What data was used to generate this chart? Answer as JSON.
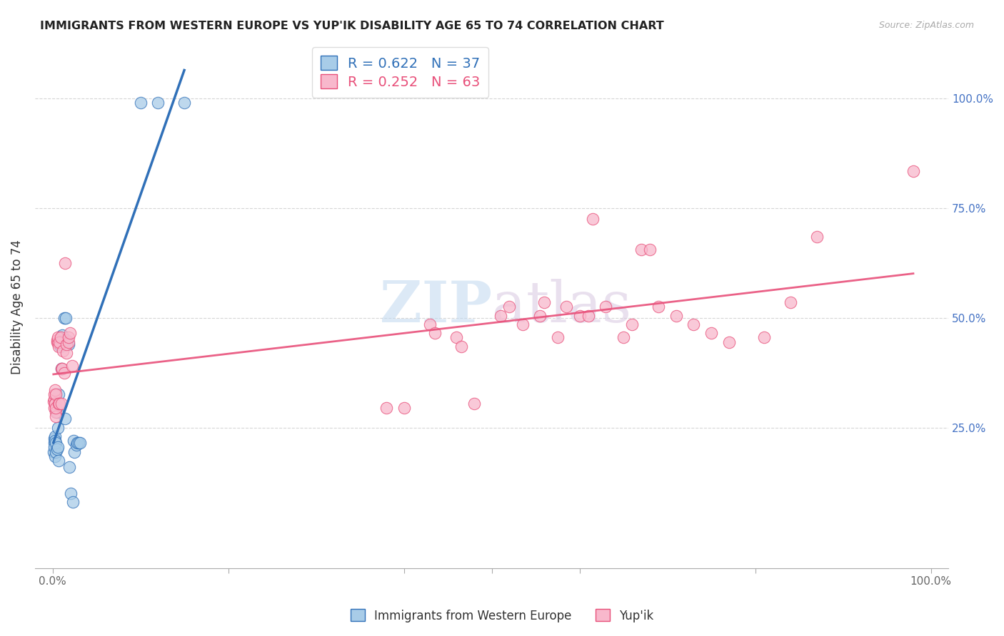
{
  "title": "IMMIGRANTS FROM WESTERN EUROPE VS YUP'IK DISABILITY AGE 65 TO 74 CORRELATION CHART",
  "source": "Source: ZipAtlas.com",
  "ylabel": "Disability Age 65 to 74",
  "legend_label_blue": "Immigrants from Western Europe",
  "legend_label_pink": "Yup'ik",
  "r_blue": 0.622,
  "n_blue": 37,
  "r_pink": 0.252,
  "n_pink": 63,
  "watermark_zip": "ZIP",
  "watermark_atlas": "atlas",
  "blue_color": "#a8cce8",
  "pink_color": "#f8b8cc",
  "blue_line_color": "#3070b8",
  "pink_line_color": "#e8507a",
  "blue_points": [
    [
      0.001,
      0.195
    ],
    [
      0.002,
      0.225
    ],
    [
      0.002,
      0.215
    ],
    [
      0.002,
      0.205
    ],
    [
      0.003,
      0.185
    ],
    [
      0.003,
      0.23
    ],
    [
      0.003,
      0.22
    ],
    [
      0.004,
      0.195
    ],
    [
      0.004,
      0.215
    ],
    [
      0.005,
      0.2
    ],
    [
      0.005,
      0.285
    ],
    [
      0.006,
      0.25
    ],
    [
      0.006,
      0.205
    ],
    [
      0.007,
      0.175
    ],
    [
      0.007,
      0.325
    ],
    [
      0.008,
      0.44
    ],
    [
      0.009,
      0.435
    ],
    [
      0.01,
      0.385
    ],
    [
      0.011,
      0.46
    ],
    [
      0.012,
      0.445
    ],
    [
      0.013,
      0.5
    ],
    [
      0.014,
      0.27
    ],
    [
      0.015,
      0.5
    ],
    [
      0.016,
      0.45
    ],
    [
      0.018,
      0.44
    ],
    [
      0.019,
      0.16
    ],
    [
      0.021,
      0.1
    ],
    [
      0.023,
      0.08
    ],
    [
      0.024,
      0.22
    ],
    [
      0.025,
      0.195
    ],
    [
      0.027,
      0.21
    ],
    [
      0.028,
      0.215
    ],
    [
      0.03,
      0.215
    ],
    [
      0.031,
      0.215
    ],
    [
      0.1,
      0.99
    ],
    [
      0.12,
      0.99
    ],
    [
      0.15,
      0.99
    ]
  ],
  "pink_points": [
    [
      0.001,
      0.31
    ],
    [
      0.002,
      0.295
    ],
    [
      0.002,
      0.315
    ],
    [
      0.002,
      0.325
    ],
    [
      0.003,
      0.305
    ],
    [
      0.003,
      0.335
    ],
    [
      0.003,
      0.305
    ],
    [
      0.004,
      0.285
    ],
    [
      0.004,
      0.325
    ],
    [
      0.004,
      0.275
    ],
    [
      0.004,
      0.295
    ],
    [
      0.005,
      0.445
    ],
    [
      0.005,
      0.45
    ],
    [
      0.006,
      0.445
    ],
    [
      0.006,
      0.455
    ],
    [
      0.007,
      0.305
    ],
    [
      0.007,
      0.435
    ],
    [
      0.008,
      0.445
    ],
    [
      0.008,
      0.305
    ],
    [
      0.009,
      0.455
    ],
    [
      0.01,
      0.305
    ],
    [
      0.01,
      0.385
    ],
    [
      0.011,
      0.385
    ],
    [
      0.012,
      0.425
    ],
    [
      0.013,
      0.375
    ],
    [
      0.014,
      0.625
    ],
    [
      0.016,
      0.42
    ],
    [
      0.016,
      0.44
    ],
    [
      0.018,
      0.445
    ],
    [
      0.018,
      0.455
    ],
    [
      0.02,
      0.465
    ],
    [
      0.022,
      0.39
    ],
    [
      0.38,
      0.295
    ],
    [
      0.4,
      0.295
    ],
    [
      0.43,
      0.485
    ],
    [
      0.435,
      0.465
    ],
    [
      0.46,
      0.455
    ],
    [
      0.465,
      0.435
    ],
    [
      0.48,
      0.305
    ],
    [
      0.51,
      0.505
    ],
    [
      0.52,
      0.525
    ],
    [
      0.535,
      0.485
    ],
    [
      0.555,
      0.505
    ],
    [
      0.56,
      0.535
    ],
    [
      0.575,
      0.455
    ],
    [
      0.585,
      0.525
    ],
    [
      0.6,
      0.505
    ],
    [
      0.61,
      0.505
    ],
    [
      0.615,
      0.725
    ],
    [
      0.63,
      0.525
    ],
    [
      0.65,
      0.455
    ],
    [
      0.66,
      0.485
    ],
    [
      0.67,
      0.655
    ],
    [
      0.68,
      0.655
    ],
    [
      0.69,
      0.525
    ],
    [
      0.71,
      0.505
    ],
    [
      0.73,
      0.485
    ],
    [
      0.75,
      0.465
    ],
    [
      0.77,
      0.445
    ],
    [
      0.81,
      0.455
    ],
    [
      0.84,
      0.535
    ],
    [
      0.87,
      0.685
    ],
    [
      0.98,
      0.835
    ]
  ]
}
